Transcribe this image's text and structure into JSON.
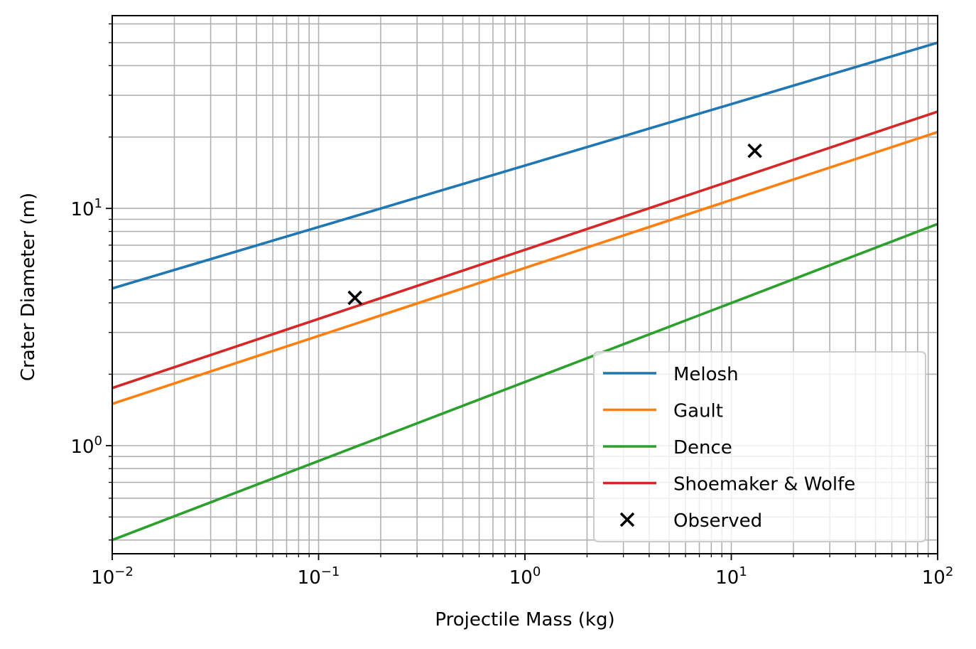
{
  "chart_data": {
    "type": "line",
    "xlabel": "Projectile Mass (kg)",
    "ylabel": "Crater Diameter (m)",
    "xscale": "log",
    "yscale": "log",
    "xlim": [
      0.01,
      100
    ],
    "ylim": [
      0.35,
      65
    ],
    "grid": true,
    "grid_minor": true,
    "legend_position": "lower-right",
    "x_tick_labels": [
      {
        "value": 0.01,
        "base": "10",
        "exp": "−2"
      },
      {
        "value": 0.1,
        "base": "10",
        "exp": "−1"
      },
      {
        "value": 1,
        "base": "10",
        "exp": "0"
      },
      {
        "value": 10,
        "base": "10",
        "exp": "1"
      },
      {
        "value": 100,
        "base": "10",
        "exp": "2"
      }
    ],
    "y_tick_labels": [
      {
        "value": 1,
        "base": "10",
        "exp": "0"
      },
      {
        "value": 10,
        "base": "10",
        "exp": "1"
      }
    ],
    "series": [
      {
        "name": "Melosh",
        "color": "#1f77b4",
        "x": [
          0.01,
          100
        ],
        "y": [
          4.6,
          50.0
        ]
      },
      {
        "name": "Gault",
        "color": "#ff7f0e",
        "x": [
          0.01,
          100
        ],
        "y": [
          1.5,
          21.0
        ]
      },
      {
        "name": "Dence",
        "color": "#2ca02c",
        "x": [
          0.01,
          100
        ],
        "y": [
          0.4,
          8.6
        ]
      },
      {
        "name": "Shoemaker & Wolfe",
        "color": "#d62728",
        "x": [
          0.01,
          100
        ],
        "y": [
          1.75,
          25.6
        ]
      }
    ],
    "scatter": {
      "name": "Observed",
      "color": "#000000",
      "marker": "x",
      "points": [
        {
          "x": 0.15,
          "y": 4.2
        },
        {
          "x": 13.0,
          "y": 17.5
        }
      ]
    }
  }
}
